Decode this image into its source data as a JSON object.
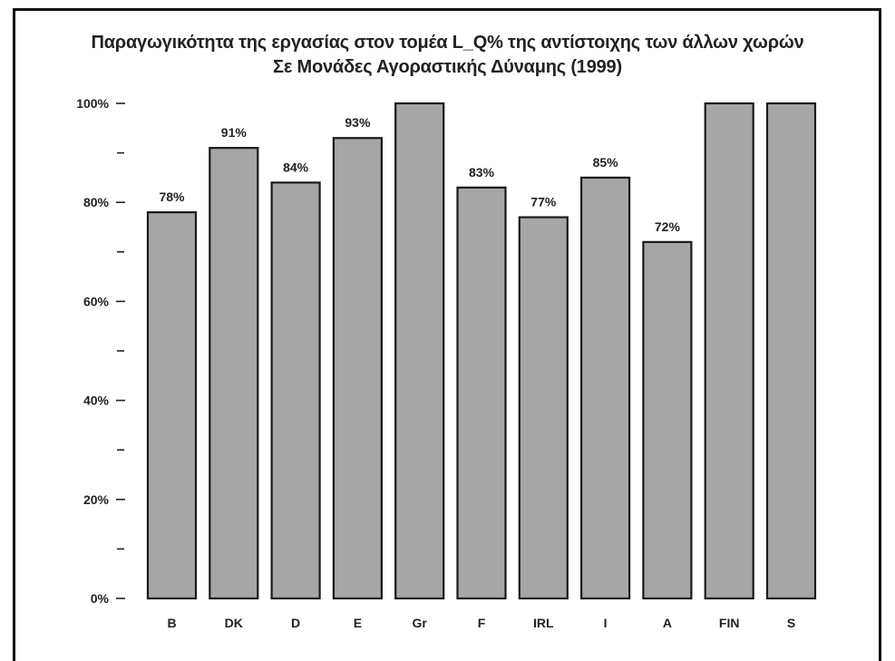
{
  "chart_data": {
    "type": "bar",
    "title": "Παραγωγικότητα της εργασίας στον τομέα L_Q% της αντίστοιχης των άλλων χωρών",
    "subtitle": "Σε Μονάδες Αγοραστικής Δύναμης (1999)",
    "categories": [
      "B",
      "DK",
      "D",
      "E",
      "Gr",
      "F",
      "IRL",
      "I",
      "A",
      "FIN",
      "S"
    ],
    "values": [
      78,
      91,
      84,
      93,
      100,
      83,
      77,
      85,
      72,
      100,
      100
    ],
    "data_labels": [
      "78%",
      "91%",
      "84%",
      "93%",
      "",
      "83%",
      "77%",
      "85%",
      "72%",
      "",
      ""
    ],
    "ylim": [
      0,
      100
    ],
    "y_ticks": [
      0,
      20,
      40,
      60,
      80,
      100
    ],
    "y_tick_labels": [
      "0%",
      "20%",
      "40%",
      "60%",
      "80%",
      "100%"
    ],
    "y_minor_ticks": [
      10,
      30,
      50,
      70,
      90
    ],
    "xlabel": "",
    "ylabel": "",
    "grid": false,
    "legend": "none",
    "bar_color": "#a6a6a6",
    "bar_edge_color": "#1a1a1a"
  }
}
